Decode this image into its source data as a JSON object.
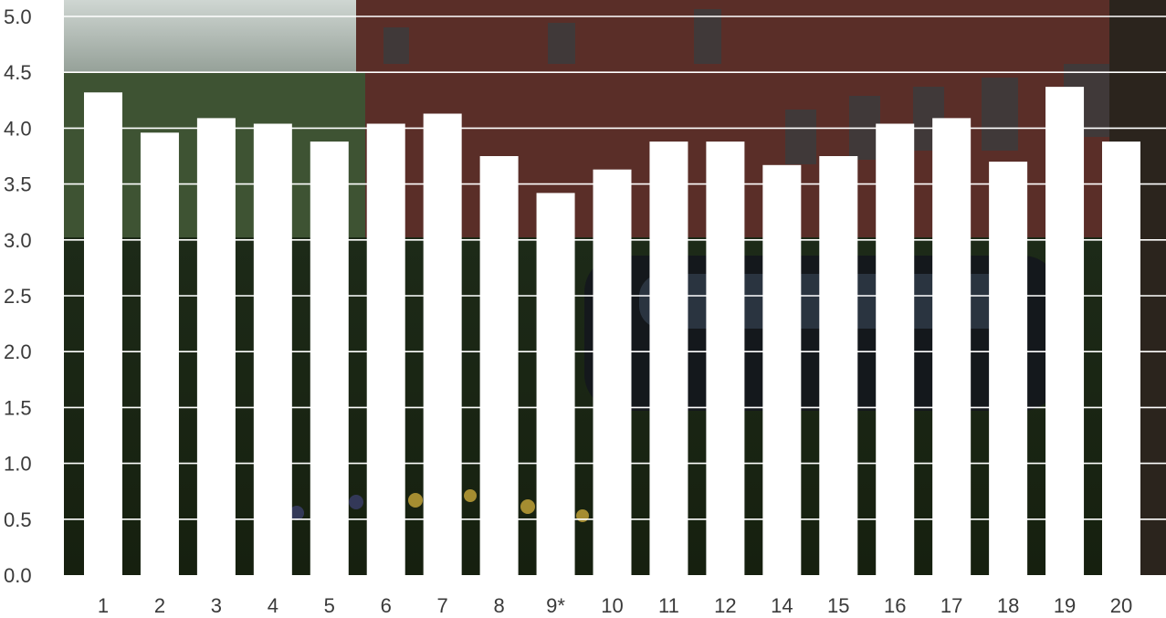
{
  "chart_data": {
    "type": "bar",
    "title": "",
    "xlabel": "",
    "ylabel": "",
    "ylim": [
      0,
      5
    ],
    "ytick_labels": [
      "0.0",
      "0.5",
      "1.0",
      "1.5",
      "2.0",
      "2.5",
      "3.0",
      "3.5",
      "4.0",
      "4.5",
      "5.0"
    ],
    "ytick_values": [
      0,
      0.5,
      1.0,
      1.5,
      2.0,
      2.5,
      3.0,
      3.5,
      4.0,
      4.5,
      5.0
    ],
    "grid": true,
    "legend": "none",
    "categories": [
      "1",
      "2",
      "3",
      "4",
      "5",
      "6",
      "7",
      "8",
      "9*",
      "10",
      "11",
      "12",
      "14",
      "15",
      "16",
      "17",
      "18",
      "19",
      "20"
    ],
    "values": [
      4.32,
      3.96,
      4.09,
      4.04,
      3.88,
      4.04,
      4.13,
      3.75,
      3.42,
      3.63,
      3.88,
      3.88,
      3.67,
      3.75,
      4.04,
      4.09,
      3.7,
      4.37,
      3.88
    ],
    "colors": {
      "bar": "#ffffff",
      "gridline": "#ffffff",
      "text": "#3a3a3a",
      "background_dark": "#1f2a1c",
      "background_brick": "#5a2e28",
      "background_foliage": "#2c3b22"
    },
    "background": "photo of a red brick building with trees and a parked car behind the plot"
  }
}
